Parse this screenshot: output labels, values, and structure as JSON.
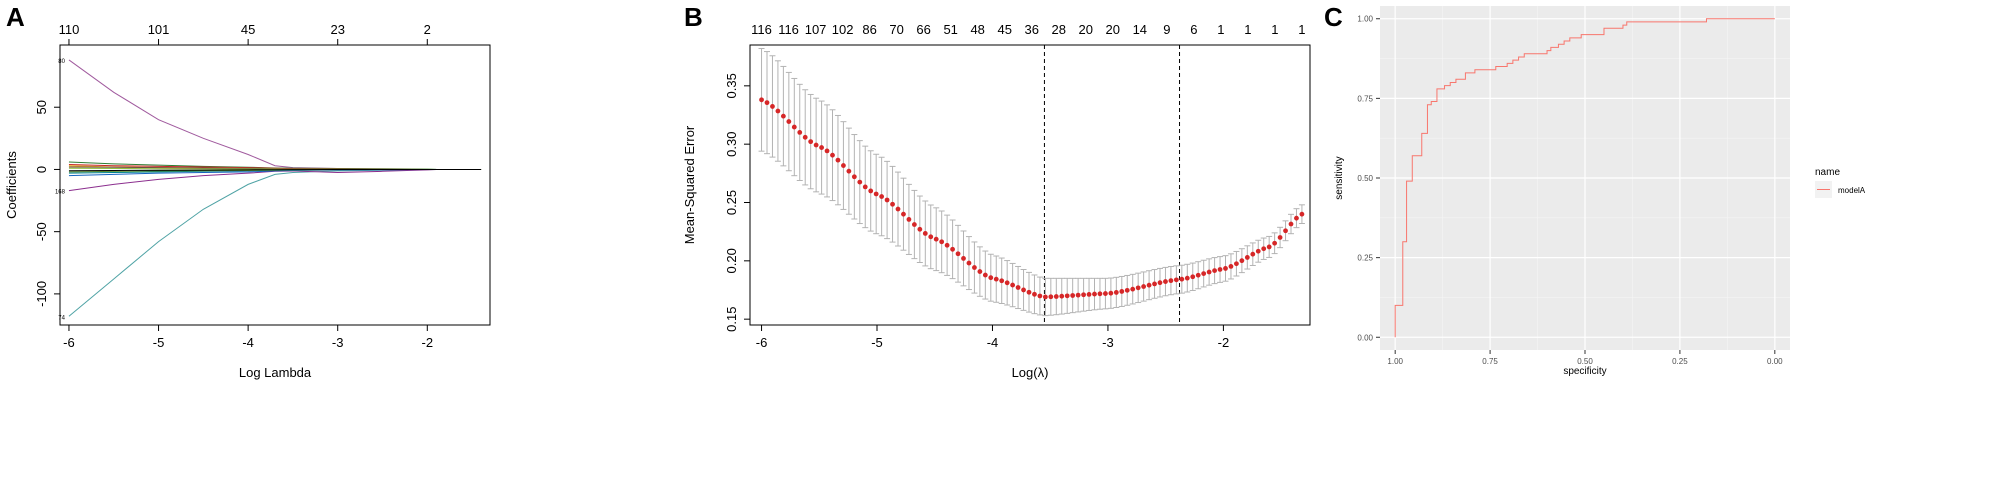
{
  "panels": {
    "a": {
      "letter": "A"
    },
    "b": {
      "letter": "B"
    },
    "c": {
      "letter": "C"
    }
  },
  "chart_data": [
    {
      "panel": "A",
      "type": "line",
      "xlabel": "Log Lambda",
      "ylabel": "Coefficients",
      "xlim": [
        -6.1,
        -1.3
      ],
      "ylim": [
        -125,
        100
      ],
      "x_ticks": [
        -6,
        -5,
        -4,
        -3,
        -2
      ],
      "y_ticks": [
        -100,
        -50,
        0,
        50
      ],
      "top_axis": {
        "ticks": [
          -6,
          -5,
          -4,
          -3,
          -2
        ],
        "labels": [
          "110",
          "101",
          "45",
          "23",
          "2"
        ]
      },
      "path_end_labels": [
        "80",
        "168",
        "74"
      ],
      "x": [
        -6.0,
        -5.5,
        -5.0,
        -4.5,
        -4.0,
        -3.7,
        -3.5,
        -3.0,
        -2.5,
        -2.0,
        -1.9,
        -1.4
      ],
      "series": [
        {
          "color": "#a05a9e",
          "values": [
            88,
            62,
            40,
            25,
            12,
            3,
            1.5,
            0.8,
            0.3,
            0.1,
            0,
            0
          ]
        },
        {
          "color": "#4fa3a5",
          "values": [
            -118,
            -88,
            -58,
            -32,
            -12,
            -4,
            -2.5,
            -1.2,
            -0.6,
            -0.1,
            0,
            0
          ]
        },
        {
          "color": "#8b2e8e",
          "values": [
            -17,
            -12,
            -8,
            -5,
            -3,
            -1.5,
            -1.2,
            -2.5,
            -1.5,
            -0.3,
            0,
            0
          ]
        },
        {
          "color": "#2e7d32",
          "values": [
            6,
            4.5,
            3.5,
            2.5,
            1.8,
            1.2,
            1,
            0.8,
            0.6,
            0.3,
            0.1,
            0
          ]
        },
        {
          "color": "#c62828",
          "values": [
            4,
            3,
            2.5,
            2,
            1.5,
            1.0,
            0.7,
            0.5,
            0.2,
            0,
            0,
            0
          ]
        },
        {
          "color": "#1565c0",
          "values": [
            -5,
            -4,
            -3,
            -2.5,
            -2,
            -1.2,
            -0.8,
            -0.4,
            -0.2,
            0,
            0,
            0
          ]
        },
        {
          "color": "#e6a817",
          "values": [
            3,
            2,
            1.5,
            1.2,
            0.8,
            0.5,
            0.3,
            0.1,
            0,
            0,
            0,
            0
          ]
        },
        {
          "color": "#00838f",
          "values": [
            -3,
            -2.5,
            -2,
            -1.5,
            -1,
            -0.6,
            -0.3,
            0,
            0,
            0,
            0,
            0
          ]
        },
        {
          "color": "#6d4c41",
          "values": [
            2,
            1.8,
            1.5,
            1.2,
            0.9,
            0.6,
            0.4,
            0.2,
            0.1,
            0,
            0,
            0
          ]
        },
        {
          "color": "#558b2f",
          "values": [
            -2,
            -1.6,
            -1.2,
            -1,
            -0.8,
            -0.5,
            -0.3,
            -0.1,
            0,
            0,
            0,
            0
          ]
        },
        {
          "color": "#90c040",
          "values": [
            1,
            0.8,
            0.6,
            0.5,
            0.4,
            0.3,
            0.2,
            0.1,
            0.05,
            0.02,
            0,
            0
          ]
        },
        {
          "color": "#000000",
          "values": [
            -1,
            -0.8,
            -0.6,
            -0.5,
            -0.3,
            -0.2,
            -0.1,
            0,
            0,
            0,
            0,
            0
          ]
        }
      ]
    },
    {
      "panel": "B",
      "type": "scatter",
      "xlabel": "Log(λ)",
      "ylabel": "Mean-Squared Error",
      "xlim": [
        -6.1,
        -1.25
      ],
      "ylim": [
        0.145,
        0.385
      ],
      "x_ticks": [
        -6,
        -5,
        -4,
        -3,
        -2
      ],
      "y_ticks": [
        0.15,
        0.2,
        0.25,
        0.3,
        0.35
      ],
      "top_axis": {
        "labels": [
          "116",
          "116",
          "107",
          "102",
          "86",
          "70",
          "66",
          "51",
          "48",
          "45",
          "36",
          "28",
          "20",
          "20",
          "14",
          "9",
          "6",
          "1",
          "1",
          "1",
          "1"
        ]
      },
      "vlines": [
        -3.55,
        -2.38
      ],
      "point_color": "#d62728",
      "errorbar_color": "#b3b3b3",
      "x_start": -6.0,
      "x_end": -1.32,
      "n_points": 100,
      "curve_knots": [
        {
          "x": -6.0,
          "y": 0.338,
          "err": 0.044
        },
        {
          "x": -5.5,
          "y": 0.298,
          "err": 0.04
        },
        {
          "x": -5.0,
          "y": 0.257,
          "err": 0.034
        },
        {
          "x": -4.5,
          "y": 0.219,
          "err": 0.027
        },
        {
          "x": -4.0,
          "y": 0.185,
          "err": 0.02
        },
        {
          "x": -3.55,
          "y": 0.169,
          "err": 0.016
        },
        {
          "x": -3.0,
          "y": 0.172,
          "err": 0.013
        },
        {
          "x": -2.38,
          "y": 0.184,
          "err": 0.012
        },
        {
          "x": -2.0,
          "y": 0.193,
          "err": 0.011
        },
        {
          "x": -1.6,
          "y": 0.212,
          "err": 0.009
        },
        {
          "x": -1.32,
          "y": 0.24,
          "err": 0.008
        }
      ]
    },
    {
      "panel": "C",
      "type": "line",
      "xlabel": "specificity",
      "ylabel": "sensitivity",
      "xlim": [
        1.04,
        -0.04
      ],
      "ylim": [
        -0.04,
        1.04
      ],
      "x_ticks": [
        1.0,
        0.75,
        0.5,
        0.25,
        0.0
      ],
      "x_tick_labels": [
        "1.00",
        "0.75",
        "0.50",
        "0.25",
        "0.00"
      ],
      "y_ticks": [
        0.0,
        0.25,
        0.5,
        0.75,
        1.0
      ],
      "y_tick_labels": [
        "0.00",
        "0.25",
        "0.50",
        "0.75",
        "1.00"
      ],
      "legend": {
        "title": "name",
        "entries": [
          "modelA"
        ],
        "placement": "right"
      },
      "background": "#ebebeb",
      "series": [
        {
          "name": "modelA",
          "color": "#f8766d",
          "points": [
            [
              1.0,
              0.0
            ],
            [
              1.0,
              0.1
            ],
            [
              0.98,
              0.1
            ],
            [
              0.98,
              0.3
            ],
            [
              0.97,
              0.3
            ],
            [
              0.97,
              0.49
            ],
            [
              0.955,
              0.49
            ],
            [
              0.955,
              0.57
            ],
            [
              0.93,
              0.57
            ],
            [
              0.93,
              0.64
            ],
            [
              0.915,
              0.64
            ],
            [
              0.915,
              0.73
            ],
            [
              0.905,
              0.73
            ],
            [
              0.905,
              0.74
            ],
            [
              0.89,
              0.74
            ],
            [
              0.89,
              0.78
            ],
            [
              0.87,
              0.78
            ],
            [
              0.87,
              0.79
            ],
            [
              0.855,
              0.79
            ],
            [
              0.855,
              0.8
            ],
            [
              0.84,
              0.8
            ],
            [
              0.84,
              0.81
            ],
            [
              0.815,
              0.81
            ],
            [
              0.815,
              0.83
            ],
            [
              0.79,
              0.83
            ],
            [
              0.79,
              0.84
            ],
            [
              0.735,
              0.84
            ],
            [
              0.735,
              0.85
            ],
            [
              0.705,
              0.85
            ],
            [
              0.705,
              0.86
            ],
            [
              0.69,
              0.86
            ],
            [
              0.69,
              0.87
            ],
            [
              0.675,
              0.87
            ],
            [
              0.675,
              0.88
            ],
            [
              0.66,
              0.88
            ],
            [
              0.66,
              0.89
            ],
            [
              0.6,
              0.89
            ],
            [
              0.6,
              0.9
            ],
            [
              0.59,
              0.9
            ],
            [
              0.59,
              0.91
            ],
            [
              0.57,
              0.91
            ],
            [
              0.57,
              0.92
            ],
            [
              0.555,
              0.92
            ],
            [
              0.555,
              0.93
            ],
            [
              0.54,
              0.93
            ],
            [
              0.54,
              0.94
            ],
            [
              0.51,
              0.94
            ],
            [
              0.51,
              0.95
            ],
            [
              0.45,
              0.95
            ],
            [
              0.45,
              0.97
            ],
            [
              0.4,
              0.97
            ],
            [
              0.4,
              0.98
            ],
            [
              0.39,
              0.98
            ],
            [
              0.39,
              0.99
            ],
            [
              0.18,
              0.99
            ],
            [
              0.18,
              1.0
            ],
            [
              0.0,
              1.0
            ]
          ]
        }
      ]
    }
  ]
}
